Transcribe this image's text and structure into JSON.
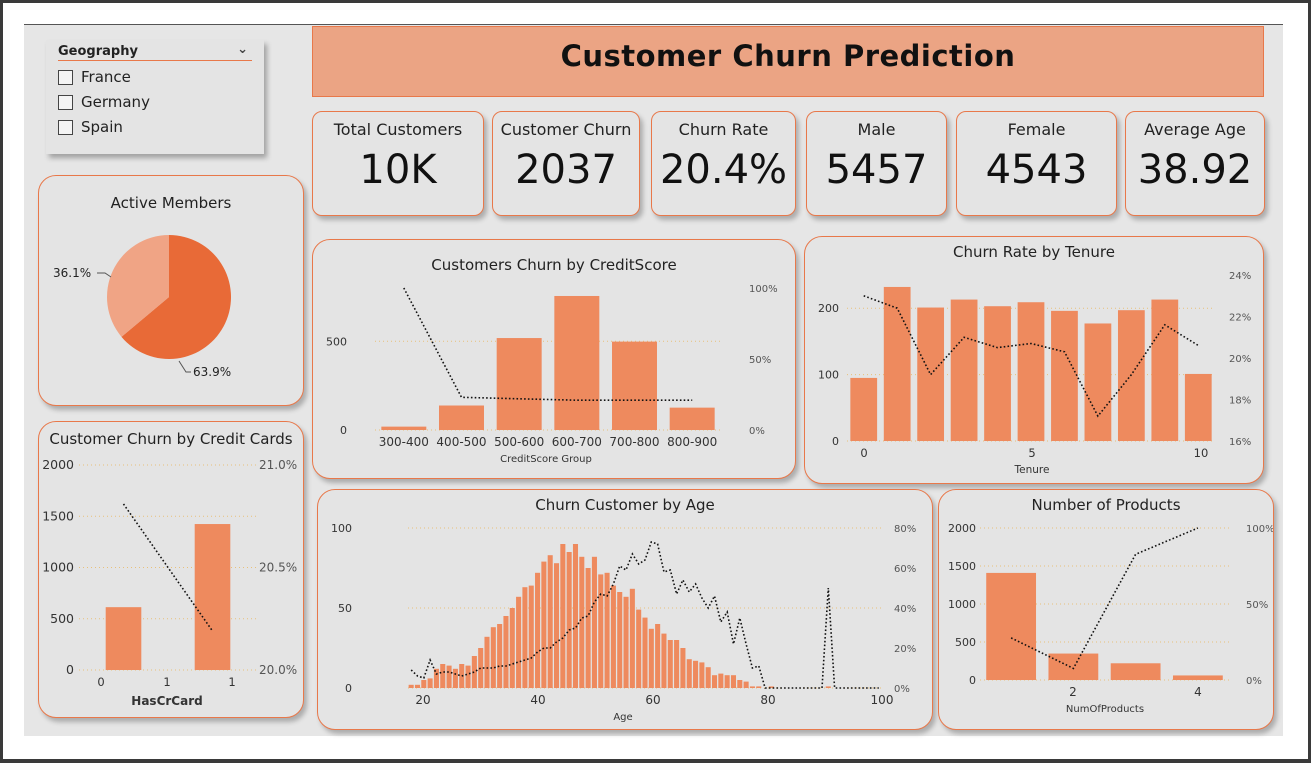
{
  "title": "Customer Churn Prediction",
  "slicer": {
    "header": "Geography",
    "items": [
      "France",
      "Germany",
      "Spain"
    ]
  },
  "kpis": [
    {
      "label": "Total Customers",
      "value": "10K"
    },
    {
      "label": "Customer Churn",
      "value": "2037"
    },
    {
      "label": "Churn Rate",
      "value": "20.4%"
    },
    {
      "label": "Male",
      "value": "5457"
    },
    {
      "label": "Female",
      "value": "4543"
    },
    {
      "label": "Average Age",
      "value": "38.92"
    }
  ],
  "chart_data": [
    {
      "id": "active",
      "type": "pie",
      "title": "Active Members",
      "slices": [
        {
          "label": "63.9%",
          "value": 63.9,
          "color": "#e86a37"
        },
        {
          "label": "36.1%",
          "value": 36.1,
          "color": "#f0a485"
        }
      ]
    },
    {
      "id": "creditscore",
      "type": "bar",
      "title": "Customers Churn by CreditScore",
      "xlabel": "CreditScore Group",
      "categories": [
        "300-400",
        "400-500",
        "500-600",
        "600-700",
        "700-800",
        "800-900"
      ],
      "bars": [
        19,
        138,
        518,
        755,
        498,
        126
      ],
      "line": [
        100,
        23,
        22,
        21,
        21,
        21
      ],
      "y_ticks": [
        "0",
        "500"
      ],
      "y2_ticks": [
        "0%",
        "50%",
        "100%"
      ],
      "ylim": [
        0,
        800
      ],
      "y2lim": [
        0,
        100
      ]
    },
    {
      "id": "tenure",
      "type": "bar",
      "title": "Churn Rate by Tenure",
      "xlabel": "Tenure",
      "x": [
        0,
        1,
        2,
        3,
        4,
        5,
        6,
        7,
        8,
        9,
        10
      ],
      "bars": [
        95,
        232,
        201,
        213,
        203,
        209,
        196,
        177,
        197,
        213,
        101
      ],
      "line": [
        23.0,
        22.4,
        19.2,
        21.0,
        20.5,
        20.7,
        20.3,
        17.2,
        19.2,
        21.6,
        20.6
      ],
      "x_ticks": [
        "0",
        "5",
        "10"
      ],
      "y_ticks": [
        "0",
        "100",
        "200"
      ],
      "y2_ticks": [
        "16%",
        "18%",
        "20%",
        "22%",
        "24%"
      ],
      "ylim": [
        0,
        250
      ],
      "y2lim": [
        16,
        24
      ]
    },
    {
      "id": "creditcards",
      "type": "bar",
      "title": "Customer Churn by Credit Cards",
      "xlabel": "HasCrCard",
      "x": [
        0,
        1
      ],
      "bars": [
        613,
        1424
      ],
      "line": [
        20.81,
        20.19
      ],
      "x_ticks": [
        "0",
        "1",
        "1"
      ],
      "y_ticks": [
        "0",
        "500",
        "1000",
        "1500",
        "2000"
      ],
      "y2_ticks": [
        "20.0%",
        "20.5%",
        "21.0%"
      ],
      "ylim": [
        0,
        2000
      ],
      "y2lim": [
        20,
        21
      ]
    },
    {
      "id": "age",
      "type": "bar",
      "title": "Churn Customer by Age",
      "xlabel": "Age",
      "x": [
        18,
        19,
        20,
        21,
        22,
        23,
        24,
        25,
        26,
        27,
        28,
        29,
        30,
        31,
        32,
        33,
        34,
        35,
        36,
        37,
        38,
        39,
        40,
        41,
        42,
        43,
        44,
        45,
        46,
        47,
        48,
        49,
        50,
        51,
        52,
        53,
        54,
        55,
        56,
        57,
        58,
        59,
        60,
        61,
        62,
        63,
        64,
        65,
        66,
        67,
        68,
        69,
        70,
        71,
        72,
        73,
        74,
        75,
        76,
        77,
        78,
        79,
        80,
        81,
        82,
        83,
        84,
        85,
        86,
        87,
        88,
        89,
        90,
        91,
        92
      ],
      "bars": [
        2,
        2,
        5,
        6,
        12,
        15,
        14,
        12,
        15,
        14,
        20,
        25,
        32,
        38,
        40,
        45,
        50,
        57,
        63,
        64,
        72,
        79,
        83,
        78,
        90,
        85,
        90,
        82,
        75,
        82,
        71,
        72,
        64,
        60,
        57,
        62,
        49,
        44,
        37,
        40,
        34,
        30,
        30,
        25,
        18,
        17,
        16,
        13,
        8,
        9,
        8,
        8,
        5,
        4,
        1,
        1,
        0,
        1,
        0,
        0,
        0,
        0,
        0,
        0,
        0,
        0,
        1,
        0,
        0,
        0,
        0,
        0,
        0,
        0,
        0
      ],
      "line": [
        9,
        6,
        5,
        14,
        7,
        8,
        8,
        7,
        6,
        7,
        8,
        10,
        10,
        10,
        11,
        11,
        12,
        13,
        14,
        15,
        18,
        20,
        20,
        23,
        25,
        29,
        30,
        35,
        36,
        43,
        47,
        46,
        52,
        61,
        59,
        67,
        62,
        64,
        73,
        72,
        58,
        59,
        47,
        54,
        48,
        52,
        45,
        40,
        46,
        33,
        38,
        22,
        35,
        22,
        10,
        11,
        0,
        0,
        0,
        0,
        0,
        0,
        0,
        0,
        0,
        0,
        50,
        0,
        0,
        0,
        0,
        0,
        0,
        0,
        0
      ],
      "x_ticks": [
        "20",
        "40",
        "60",
        "80",
        "100"
      ],
      "y_ticks": [
        "0",
        "50",
        "100"
      ],
      "y2_ticks": [
        "0%",
        "20%",
        "40%",
        "60%",
        "80%"
      ],
      "ylim": [
        0,
        100
      ],
      "y2lim": [
        0,
        80
      ]
    },
    {
      "id": "products",
      "type": "bar",
      "title": "Number of Products",
      "xlabel": "NumOfProducts",
      "x": [
        1,
        2,
        3,
        4
      ],
      "bars": [
        1409,
        348,
        220,
        60
      ],
      "line": [
        27.7,
        7.6,
        82.7,
        100
      ],
      "x_ticks": [
        "2",
        "4"
      ],
      "y_ticks": [
        "0",
        "500",
        "1000",
        "1500",
        "2000"
      ],
      "y2_ticks": [
        "0%",
        "50%",
        "100%"
      ],
      "ylim": [
        0,
        2000
      ],
      "y2lim": [
        0,
        100
      ]
    }
  ]
}
